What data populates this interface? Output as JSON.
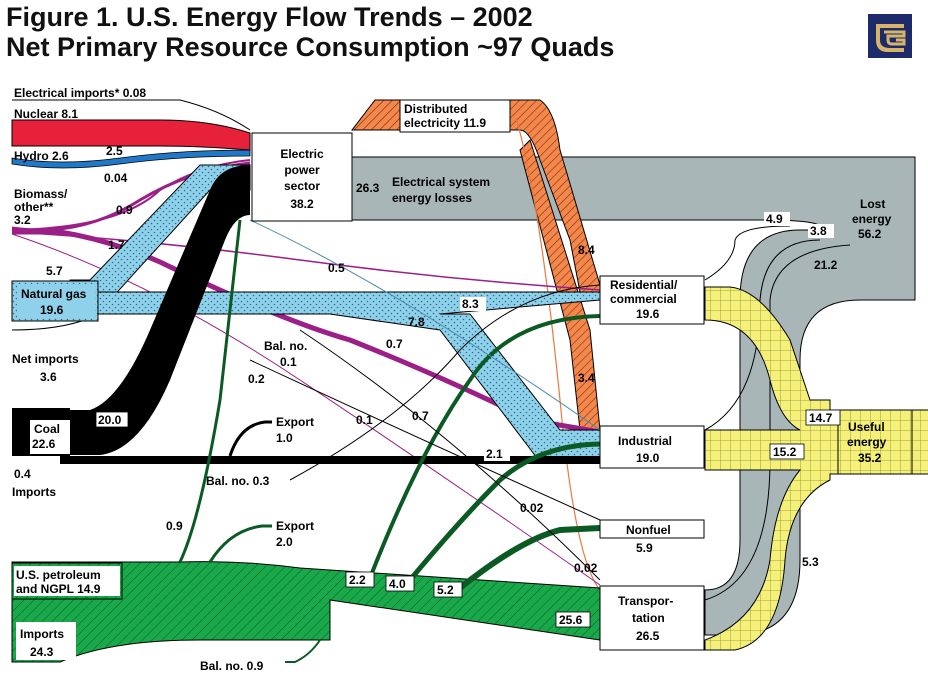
{
  "title": {
    "line1": "Figure 1. U.S. Energy Flow Trends – 2002",
    "line2": "Net Primary Resource Consumption ~97 Quads"
  },
  "colors": {
    "nuclear": "#e8213b",
    "hydro": "#1f78c8",
    "biomass": "#9c1f87",
    "gas": "#8fd0ea",
    "coal": "#000000",
    "petroleum": "#1aa94a",
    "electricity": "#f4874b",
    "lost": "#a9b6b8",
    "useful": "#f4f07a",
    "logo": "#1d2b6b"
  },
  "sources": {
    "elec_imports": "Electrical imports* 0.08",
    "nuclear": "Nuclear 8.1",
    "hydro": "Hydro 2.6",
    "biomass1": "Biomass/",
    "biomass2": "other**",
    "biomass3": "3.2",
    "natgas1": "Natural gas",
    "natgas2": "19.6",
    "netimp1": "Net imports",
    "netimp2": "3.6",
    "coal1": "Coal",
    "coal2": "22.6",
    "coal_imp1": "0.4",
    "coal_imp2": "Imports",
    "petro1": "U.S. petroleum",
    "petro2": "and NGPL 14.9",
    "imports1": "Imports",
    "imports2": "24.3"
  },
  "nodes": {
    "power1": "Electric",
    "power2": "power",
    "power3": "sector",
    "power4": "38.2",
    "dist1": "Distributed",
    "dist2": "electricity 11.9",
    "sysloss1": "Electrical system",
    "sysloss2": "energy losses",
    "res1": "Residential/",
    "res2": "commercial",
    "res3": "19.6",
    "ind1": "Industrial",
    "ind2": "19.0",
    "nonfuel1": "Nonfuel",
    "nonfuel2": "5.9",
    "trans1": "Transpor-",
    "trans2": "tation",
    "trans3": "26.5",
    "lost1": "Lost",
    "lost2": "energy",
    "lost3": "56.2",
    "useful1": "Useful",
    "useful2": "energy",
    "useful3": "35.2"
  },
  "flows": {
    "hydro_25": "2.5",
    "bio_004": "0.04",
    "bio_09": "0.9",
    "bio_17": "1.7",
    "gas_57": "5.7",
    "sys_263": "26.3",
    "res_84": "8.4",
    "ind_34": "3.4",
    "bio_05": "0.5",
    "gas_83": "8.3",
    "gas_78": "7.8",
    "gas_07": "0.7",
    "gas_07b": "0.7",
    "balno1": "Bal. no.",
    "balno1v": "0.1",
    "bio_02": "0.2",
    "coal_01": "0.1",
    "coal_200": "20.0",
    "export1a": "Export",
    "export1b": "1.0",
    "coal_21": "2.1",
    "balno3": "Bal. no. 0.3",
    "p_002a": "0.02",
    "p_002b": "0.02",
    "p_09": "0.9",
    "export2a": "Export",
    "export2b": "2.0",
    "p_22": "2.2",
    "p_40": "4.0",
    "p_52": "5.2",
    "p_256": "25.6",
    "balno9": "Bal. no. 0.9",
    "l_49": "4.9",
    "l_38": "3.8",
    "l_212": "21.2",
    "u_147": "14.7",
    "u_152": "15.2",
    "u_53": "5.3"
  }
}
